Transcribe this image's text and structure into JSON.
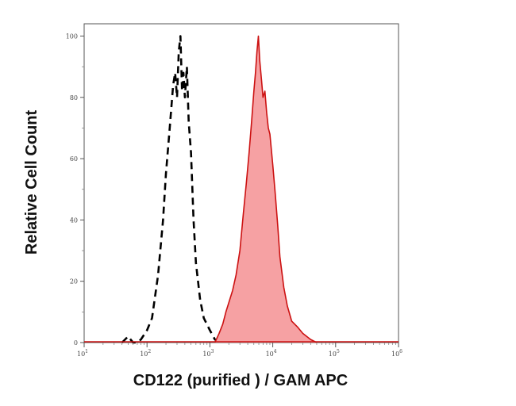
{
  "chart_data": {
    "type": "area",
    "xlabel": "CD122 (purified ) / GAM APC",
    "ylabel": "Relative Cell Count",
    "x_scale": "log",
    "xlim": [
      10,
      1000000
    ],
    "ylim": [
      0,
      104
    ],
    "grid": false,
    "x_ticks": [
      {
        "base": "10",
        "exp": "1"
      },
      {
        "base": "10",
        "exp": "2"
      },
      {
        "base": "10",
        "exp": "3"
      },
      {
        "base": "10",
        "exp": "4"
      },
      {
        "base": "10",
        "exp": "5"
      },
      {
        "base": "10",
        "exp": "6"
      }
    ],
    "y_ticks": [
      "0",
      "20",
      "40",
      "60",
      "80",
      "100"
    ],
    "series": [
      {
        "style": "dashed",
        "color": "#000000",
        "fill": "none",
        "x": [
          40,
          50,
          60,
          70,
          80,
          100,
          120,
          150,
          180,
          200,
          230,
          260,
          280,
          300,
          320,
          340,
          360,
          380,
          400,
          430,
          460,
          500,
          550,
          600,
          700,
          800,
          1000,
          1200,
          1500
        ],
        "y": [
          0,
          2,
          0,
          0,
          1,
          4,
          8,
          22,
          40,
          55,
          70,
          84,
          88,
          80,
          95,
          100,
          82,
          88,
          80,
          90,
          72,
          62,
          40,
          26,
          14,
          8,
          4,
          1,
          0
        ]
      },
      {
        "style": "filled",
        "color": "#cc1111",
        "fill": "#f6a1a3",
        "x": [
          1200,
          1400,
          1600,
          1800,
          2000,
          2300,
          2600,
          3000,
          3400,
          3800,
          4200,
          4600,
          5000,
          5300,
          5600,
          5900,
          6200,
          6600,
          7000,
          7500,
          8000,
          8500,
          9000,
          10000,
          11000,
          12000,
          13000,
          15000,
          17000,
          20000,
          25000,
          30000,
          40000,
          50000
        ],
        "y": [
          0,
          3,
          6,
          10,
          13,
          17,
          22,
          30,
          42,
          52,
          62,
          72,
          82,
          88,
          95,
          100,
          92,
          86,
          80,
          82,
          75,
          70,
          68,
          58,
          48,
          38,
          28,
          18,
          12,
          7,
          5,
          3,
          1,
          0
        ]
      }
    ]
  }
}
